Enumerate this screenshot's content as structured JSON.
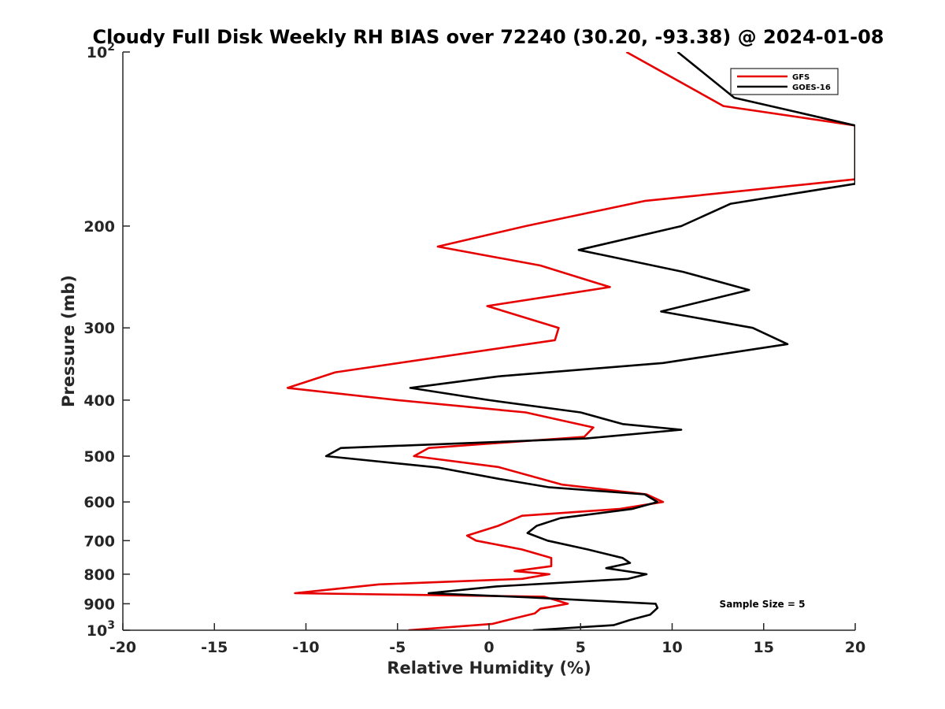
{
  "chart_data": {
    "type": "line",
    "title": "Cloudy Full Disk Weekly RH BIAS over 72240 (30.20, -93.38) @ 2024-01-08",
    "xlabel": "Relative Humidity (%)",
    "ylabel": "Pressure (mb)",
    "xlim": [
      -20,
      20
    ],
    "ylim": [
      100,
      1000
    ],
    "yscale": "log",
    "y_reversed": true,
    "xticks": [
      "-20",
      "-15",
      "-10",
      "-5",
      "0",
      "5",
      "10",
      "15",
      "20"
    ],
    "yticks": [
      {
        "value": 200,
        "label": "200"
      },
      {
        "value": 300,
        "label": "300"
      },
      {
        "value": 400,
        "label": "400"
      },
      {
        "value": 500,
        "label": "500"
      },
      {
        "value": 600,
        "label": "600"
      },
      {
        "value": 700,
        "label": "700"
      },
      {
        "value": 800,
        "label": "800"
      },
      {
        "value": 900,
        "label": "900"
      }
    ],
    "ytick_extremes": [
      {
        "value": 100,
        "base": "10",
        "exp": "2"
      },
      {
        "value": 1000,
        "base": "10",
        "exp": "3"
      }
    ],
    "legend_position": "top-right",
    "annotation": "Sample Size = 5",
    "series": [
      {
        "name": "GFS",
        "color": "#e60000",
        "points": [
          [
            7.5,
            100
          ],
          [
            12.8,
            124
          ],
          [
            20,
            134
          ],
          [
            20,
            166
          ],
          [
            8.5,
            181
          ],
          [
            2,
            200
          ],
          [
            -2.8,
            217
          ],
          [
            2.8,
            234
          ],
          [
            6.6,
            255
          ],
          [
            -0.1,
            275
          ],
          [
            3.8,
            300
          ],
          [
            3.6,
            315
          ],
          [
            -8.4,
            358
          ],
          [
            -11,
            381
          ],
          [
            -5,
            400
          ],
          [
            2,
            420
          ],
          [
            5.7,
            446
          ],
          [
            5.2,
            463
          ],
          [
            -3.3,
            484
          ],
          [
            -4.1,
            500
          ],
          [
            0.5,
            522
          ],
          [
            4,
            560
          ],
          [
            8.6,
            582
          ],
          [
            9.5,
            600
          ],
          [
            7.1,
            617
          ],
          [
            1.8,
            634
          ],
          [
            0.5,
            660
          ],
          [
            -1.2,
            686
          ],
          [
            -0.7,
            700
          ],
          [
            1.8,
            725
          ],
          [
            3.4,
            750
          ],
          [
            3.4,
            775
          ],
          [
            1.4,
            790
          ],
          [
            3.3,
            800
          ],
          [
            1.8,
            815
          ],
          [
            -6,
            833
          ],
          [
            -10.6,
            863
          ],
          [
            3,
            875
          ],
          [
            4.3,
            900
          ],
          [
            2.8,
            918
          ],
          [
            2.5,
            935
          ],
          [
            1.2,
            957
          ],
          [
            0.2,
            975
          ],
          [
            -4.4,
            1000
          ]
        ]
      },
      {
        "name": "GOES-16",
        "color": "#000000",
        "points": [
          [
            10.3,
            100
          ],
          [
            13.4,
            120
          ],
          [
            20,
            134
          ],
          [
            20,
            169
          ],
          [
            13.2,
            183
          ],
          [
            10.5,
            200
          ],
          [
            4.9,
            220
          ],
          [
            10.6,
            240
          ],
          [
            14.2,
            258
          ],
          [
            9.4,
            281
          ],
          [
            14.4,
            300
          ],
          [
            16.3,
            320
          ],
          [
            9.5,
            345
          ],
          [
            0.5,
            364
          ],
          [
            -4.3,
            381
          ],
          [
            0,
            400
          ],
          [
            5,
            420
          ],
          [
            7.3,
            440
          ],
          [
            10.5,
            450
          ],
          [
            5.3,
            466
          ],
          [
            -8.1,
            484
          ],
          [
            -8.9,
            500
          ],
          [
            -2.8,
            523
          ],
          [
            0.5,
            547
          ],
          [
            3.3,
            566
          ],
          [
            8.5,
            582
          ],
          [
            9.2,
            600
          ],
          [
            7.8,
            617
          ],
          [
            3.9,
            640
          ],
          [
            2.6,
            660
          ],
          [
            2.1,
            679
          ],
          [
            3.2,
            700
          ],
          [
            5.4,
            725
          ],
          [
            7.3,
            750
          ],
          [
            7.7,
            765
          ],
          [
            6.4,
            781
          ],
          [
            8.6,
            800
          ],
          [
            7.6,
            815
          ],
          [
            0.4,
            840
          ],
          [
            -3.3,
            863
          ],
          [
            2.1,
            877
          ],
          [
            9.1,
            900
          ],
          [
            9.2,
            915
          ],
          [
            8.8,
            940
          ],
          [
            7.7,
            960
          ],
          [
            6.8,
            980
          ],
          [
            2.4,
            1000
          ]
        ]
      }
    ]
  }
}
